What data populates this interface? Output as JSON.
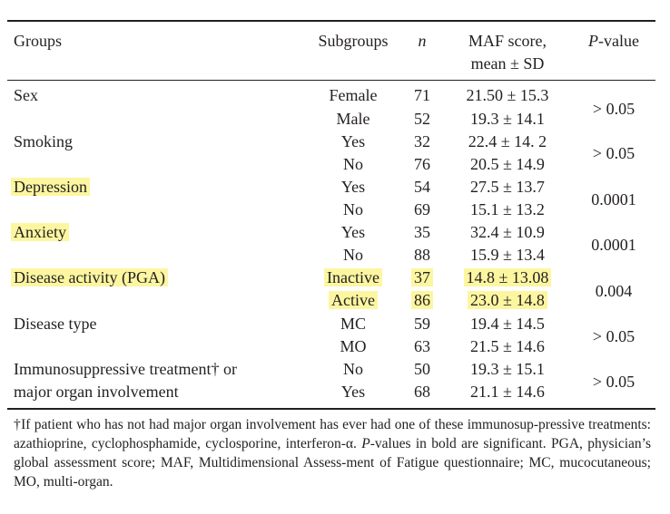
{
  "header": {
    "groups": "Groups",
    "subgroups": "Subgroups",
    "n": "n",
    "maf_line1": "MAF score,",
    "maf_line2": "mean ± SD",
    "pvalue_italic": "P",
    "pvalue_rest": "-value"
  },
  "rows": [
    {
      "group": "Sex",
      "sub1": "Female",
      "n1": "71",
      "maf1": "21.50 ± 15.3",
      "sub2": "Male",
      "n2": "52",
      "maf2": "19.3 ± 14.1",
      "p": "> 0.05"
    },
    {
      "group": "Smoking",
      "sub1": "Yes",
      "n1": "32",
      "maf1": "22.4 ± 14. 2",
      "sub2": "No",
      "n2": "76",
      "maf2": "20.5 ± 14.9",
      "p": "> 0.05"
    },
    {
      "group": "Depression",
      "sub1": "Yes",
      "n1": "54",
      "maf1": "27.5 ± 13.7",
      "sub2": "No",
      "n2": "69",
      "maf2": "15.1 ± 13.2",
      "p": "0.0001"
    },
    {
      "group": "Anxiety",
      "sub1": "Yes",
      "n1": "35",
      "maf1": "32.4 ± 10.9",
      "sub2": "No",
      "n2": "88",
      "maf2": "15.9 ± 13.4",
      "p": "0.0001"
    },
    {
      "group": "Disease activity (PGA)",
      "sub1": "Inactive",
      "n1": "37",
      "maf1": "14.8 ± 13.08",
      "sub2": "Active",
      "n2": "86",
      "maf2": "23.0 ± 14.8",
      "p": "0.004"
    },
    {
      "group": "Disease type",
      "sub1": "MC",
      "n1": "59",
      "maf1": "19.4 ± 14.5",
      "sub2": "MO",
      "n2": "63",
      "maf2": "21.5 ± 14.6",
      "p": "> 0.05"
    },
    {
      "group_line1": "Immunosuppressive treatment† or",
      "group_line2": "major organ involvement",
      "sub1": "No",
      "n1": "50",
      "maf1": "19.3 ± 15.1",
      "sub2": "Yes",
      "n2": "68",
      "maf2": "21.1 ± 14.6",
      "p": "> 0.05"
    }
  ],
  "footnote": {
    "part1": "†If patient who has not had major organ involvement has ever had one of these immunosup-pressive treatments: azathioprine, cyclophosphamide, cyclosporine, interferon-α. ",
    "p_italic": "P",
    "part2": "-values in bold are significant. PGA, physician’s global assessment score; MAF, Multidimensional Assess-ment of Fatigue questionnaire; MC, mucocutaneous; MO, multi-organ."
  },
  "colors": {
    "highlight": "#fdf6a1",
    "text": "#231f20"
  }
}
